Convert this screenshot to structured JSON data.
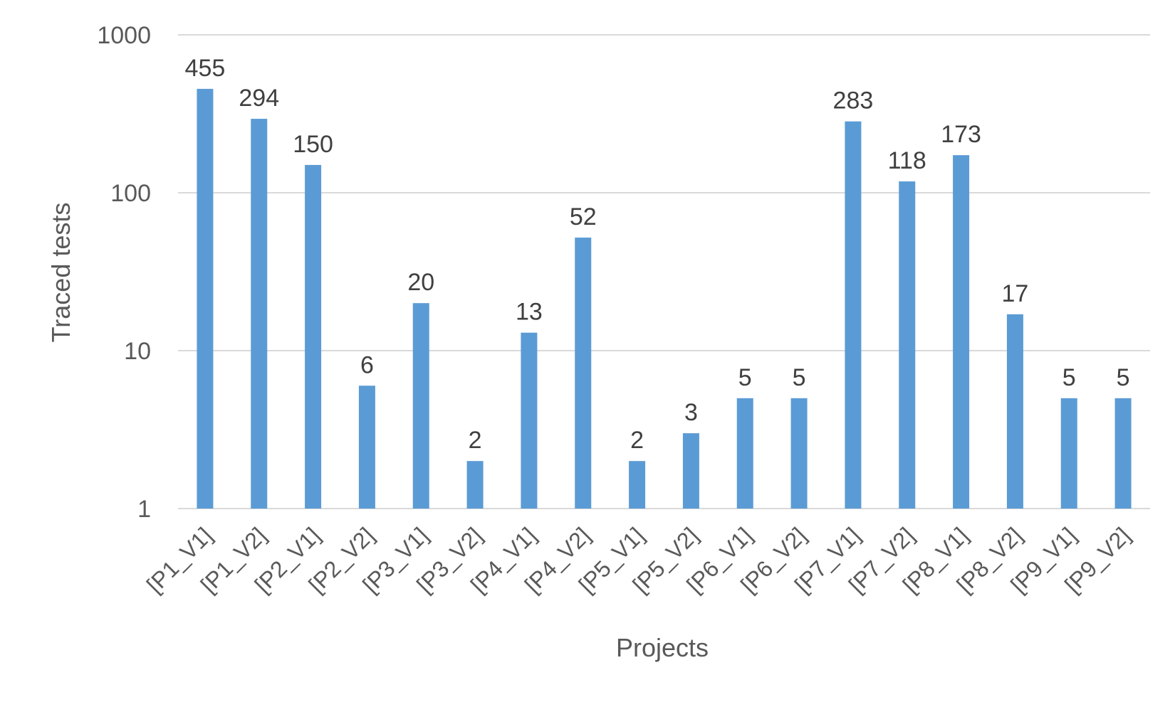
{
  "chart_data": {
    "type": "bar",
    "title": "",
    "xlabel": "Projects",
    "ylabel": "Traced tests",
    "yscale": "log",
    "ylim": [
      1,
      1000
    ],
    "yticks": [
      {
        "value": 1,
        "label": "1"
      },
      {
        "value": 10,
        "label": "10"
      },
      {
        "value": 100,
        "label": "100"
      },
      {
        "value": 1000,
        "label": "1000"
      }
    ],
    "grid": true,
    "legend": false,
    "categories": [
      "[P1_V1]",
      "[P1_V2]",
      "[P2_V1]",
      "[P2_V2]",
      "[P3_V1]",
      "[P3_V2]",
      "[P4_V1]",
      "[P4_V2]",
      "[P5_V1]",
      "[P5_V2]",
      "[P6_V1]",
      "[P6_V2]",
      "[P7_V1]",
      "[P7_V2]",
      "[P8_V1]",
      "[P8_V2]",
      "[P9_V1]",
      "[P9_V2]"
    ],
    "values": [
      455,
      294,
      150,
      6,
      20,
      2,
      13,
      52,
      2,
      3,
      5,
      5,
      283,
      118,
      173,
      17,
      5,
      5
    ],
    "data_labels": [
      "455",
      "294",
      "150",
      "6",
      "20",
      "2",
      "13",
      "52",
      "2",
      "3",
      "5",
      "5",
      "283",
      "118",
      "173",
      "17",
      "5",
      "5"
    ],
    "colors": {
      "bar": "#5b9bd5",
      "grid": "#d9d9d9",
      "axis": "#d9d9d9",
      "tick_text": "#595959",
      "data_label_text": "#404040",
      "axis_title_text": "#595959"
    }
  }
}
